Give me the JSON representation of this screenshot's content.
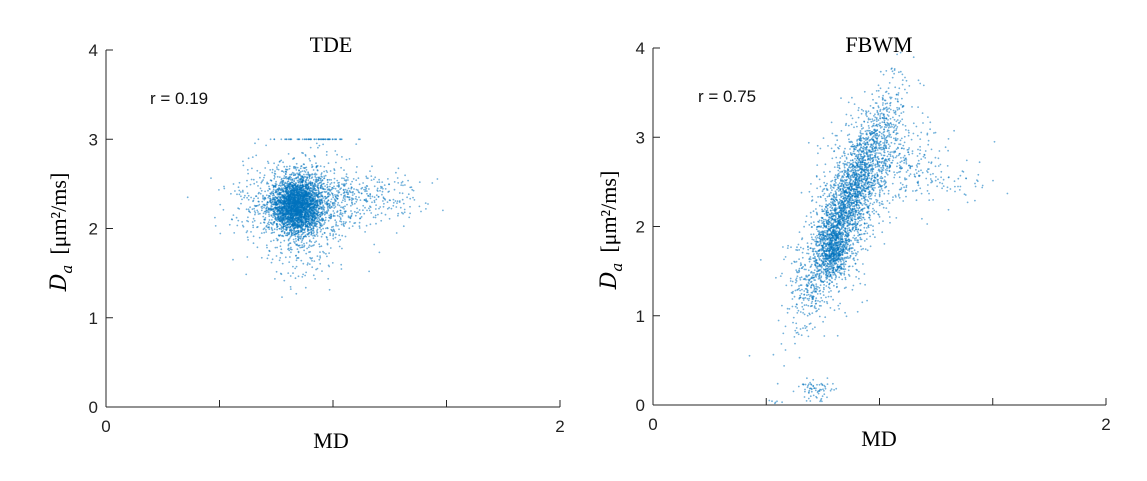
{
  "chart_data": [
    {
      "type": "scatter",
      "title": "TDE",
      "xlabel": "MD",
      "ylabel": {
        "symbol": "D",
        "subscript": "a",
        "unit": "[μm²/ms]"
      },
      "xlim": [
        0,
        2
      ],
      "ylim": [
        0,
        4
      ],
      "x_ticks": [
        0,
        0.5,
        1,
        1.5,
        2
      ],
      "x_tick_labels": [
        "0",
        "",
        "",
        "",
        "2"
      ],
      "y_ticks": [
        0,
        1,
        2,
        3,
        4
      ],
      "y_tick_labels": [
        "0",
        "1",
        "2",
        "3",
        "4"
      ],
      "annotation": "r = 0.19",
      "color": "#0072BD",
      "series": [
        {
          "values": [
            {
              "x": 0.84,
              "y": 2.25,
              "sx": 0.055,
              "sy": 0.15,
              "n": 2600
            },
            {
              "x": 0.87,
              "y": 2.3,
              "sx": 0.12,
              "sy": 0.25,
              "n": 900
            },
            {
              "x": 1.05,
              "y": 2.35,
              "sx": 0.16,
              "sy": 0.16,
              "n": 350
            },
            {
              "x": 0.85,
              "y": 1.75,
              "sx": 0.07,
              "sy": 0.2,
              "n": 120
            },
            {
              "x": 0.62,
              "y": 2.2,
              "sx": 0.09,
              "sy": 0.22,
              "n": 80
            },
            {
              "x": 0.92,
              "y": 3.0,
              "sx": 0.08,
              "sy": 0.0,
              "n": 60
            },
            {
              "x": 1.2,
              "y": 2.4,
              "sx": 0.15,
              "sy": 0.12,
              "n": 40
            }
          ]
        }
      ]
    },
    {
      "type": "scatter",
      "title": "FBWM",
      "xlabel": "MD",
      "ylabel": {
        "symbol": "D",
        "subscript": "a",
        "unit": "[μm²/ms]"
      },
      "xlim": [
        0,
        2
      ],
      "ylim": [
        0,
        4
      ],
      "x_ticks": [
        0,
        0.5,
        1,
        1.5,
        2
      ],
      "x_tick_labels": [
        "0",
        "",
        "",
        "",
        "2"
      ],
      "y_ticks": [
        0,
        1,
        2,
        3,
        4
      ],
      "y_tick_labels": [
        "0",
        "1",
        "2",
        "3",
        "4"
      ],
      "annotation": "r = 0.75",
      "color": "#0072BD",
      "series": [
        {
          "values": [
            {
              "x": 0.86,
              "y": 2.25,
              "sx": 0.05,
              "sy": 0.13,
              "n": 2200,
              "dx": 0.09,
              "dy": 0.55
            },
            {
              "x": 0.8,
              "y": 1.75,
              "sx": 0.03,
              "sy": 0.16,
              "n": 450
            },
            {
              "x": 0.88,
              "y": 2.3,
              "sx": 0.09,
              "sy": 0.2,
              "n": 700,
              "dx": 0.08,
              "dy": 0.5
            },
            {
              "x": 1.1,
              "y": 2.65,
              "sx": 0.13,
              "sy": 0.2,
              "n": 260
            },
            {
              "x": 1.0,
              "y": 3.0,
              "sx": 0.1,
              "sy": 0.22,
              "n": 90
            },
            {
              "x": 0.72,
              "y": 0.18,
              "sx": 0.04,
              "sy": 0.06,
              "n": 70
            },
            {
              "x": 0.55,
              "y": 0.03,
              "sx": 0.03,
              "sy": 0.015,
              "n": 6
            },
            {
              "x": 1.35,
              "y": 2.5,
              "sx": 0.1,
              "sy": 0.12,
              "n": 30
            },
            {
              "x": 0.7,
              "y": 1.3,
              "sx": 0.06,
              "sy": 0.15,
              "n": 60
            }
          ]
        }
      ]
    }
  ]
}
